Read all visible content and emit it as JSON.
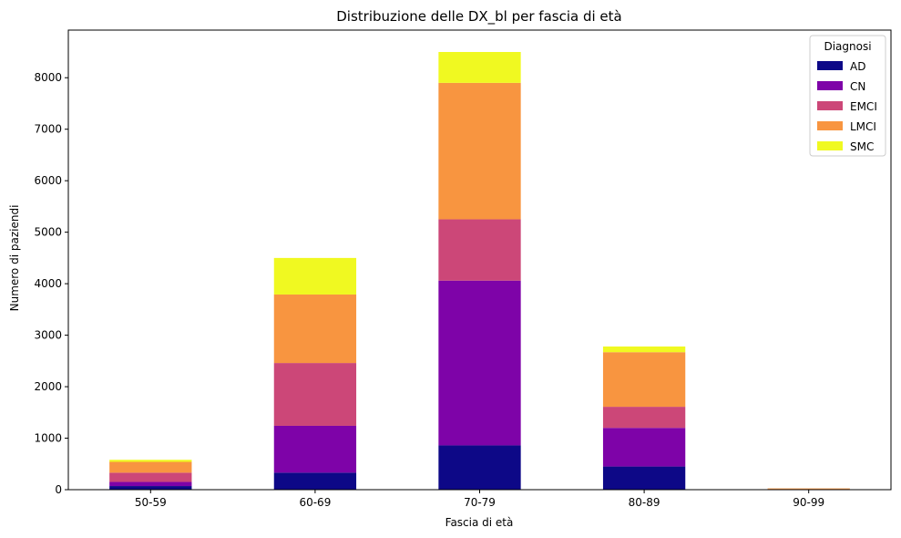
{
  "chart_data": {
    "type": "bar",
    "stacked": true,
    "title": "Distribuzione delle DX_bl per fascia di età",
    "xlabel": "Fascia di età",
    "ylabel": "Numero di paziendi",
    "categories": [
      "50-59",
      "60-69",
      "70-79",
      "80-89",
      "90-99"
    ],
    "ylim": [
      0,
      8925
    ],
    "yticks": [
      0,
      1000,
      2000,
      3000,
      4000,
      5000,
      6000,
      7000,
      8000
    ],
    "grid": false,
    "legend": {
      "title": "Diagnosi",
      "placement": "top-right"
    },
    "series": [
      {
        "name": "AD",
        "color": "#0d0887",
        "values": [
          70,
          330,
          860,
          450,
          0
        ]
      },
      {
        "name": "CN",
        "color": "#7e03a8",
        "values": [
          80,
          910,
          3200,
          750,
          5
        ]
      },
      {
        "name": "EMCI",
        "color": "#cc4778",
        "values": [
          180,
          1220,
          1190,
          410,
          5
        ]
      },
      {
        "name": "LMCI",
        "color": "#f89540",
        "values": [
          210,
          1330,
          2650,
          1060,
          15
        ]
      },
      {
        "name": "SMC",
        "color": "#f0f921",
        "values": [
          40,
          710,
          600,
          110,
          0
        ]
      }
    ]
  }
}
